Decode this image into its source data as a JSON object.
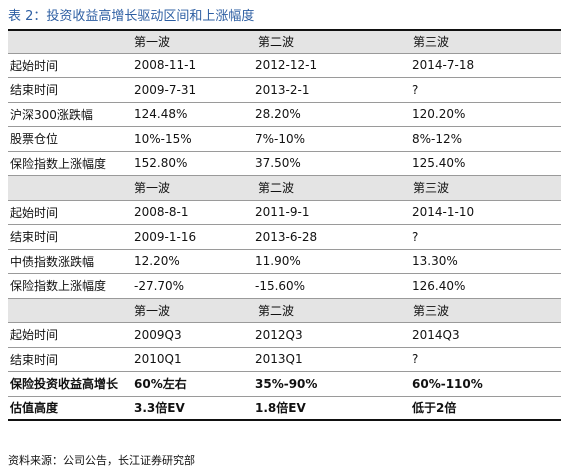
{
  "title": "表 2：投资收益高增长驱动区间和上涨幅度",
  "sections": [
    {
      "header": [
        "",
        "第一波",
        "第二波",
        "第三波"
      ],
      "rows": [
        [
          "起始时间",
          "2008-11-1",
          "2012-12-1",
          "2014-7-18"
        ],
        [
          "结束时间",
          "2009-7-31",
          "2013-2-1",
          "?"
        ],
        [
          "沪深300涨跌幅",
          "124.48%",
          "28.20%",
          "120.20%"
        ],
        [
          "股票仓位",
          "10%-15%",
          "7%-10%",
          "8%-12%"
        ],
        [
          "保险指数上涨幅度",
          "152.80%",
          "37.50%",
          "125.40%"
        ]
      ]
    },
    {
      "header": [
        "",
        "第一波",
        "第二波",
        "第三波"
      ],
      "rows": [
        [
          "起始时间",
          "2008-8-1",
          "2011-9-1",
          "2014-1-10"
        ],
        [
          "结束时间",
          "2009-1-16",
          "2013-6-28",
          "?"
        ],
        [
          "中债指数涨跌幅",
          "12.20%",
          "11.90%",
          "13.30%"
        ],
        [
          "保险指数上涨幅度",
          "-27.70%",
          "-15.60%",
          "126.40%"
        ]
      ]
    },
    {
      "header": [
        "",
        "第一波",
        "第二波",
        "第三波"
      ],
      "rows": [
        [
          "起始时间",
          "2009Q3",
          "2012Q3",
          "2014Q3"
        ],
        [
          "结束时间",
          "2010Q1",
          "2013Q1",
          "?"
        ]
      ]
    }
  ],
  "summary_rows": [
    [
      "保险投资收益高增长",
      "60%左右",
      "35%-90%",
      "60%-110%"
    ],
    [
      "估值高度",
      "3.3倍EV",
      "1.8倍EV",
      "低于2倍"
    ]
  ],
  "source": "资料来源：公司公告，长江证券研究部"
}
